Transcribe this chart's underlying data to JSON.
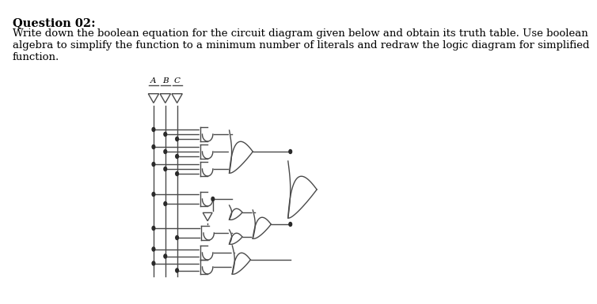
{
  "title_bold": "Question 02:",
  "title_text": "Write down the boolean equation for the circuit diagram given below and obtain its truth table. Use boolean\nalgebra to simplify the function to a minimum number of literals and redraw the logic diagram for simplified\nfunction.",
  "bg_color": "#ffffff",
  "line_color": "#4a4a4a",
  "gate_color": "#ffffff",
  "gate_edge": "#4a4a4a",
  "dot_color": "#2a2a2a",
  "text_fontsize": 9.5,
  "title_fontsize": 10.5,
  "lw": 1.0
}
